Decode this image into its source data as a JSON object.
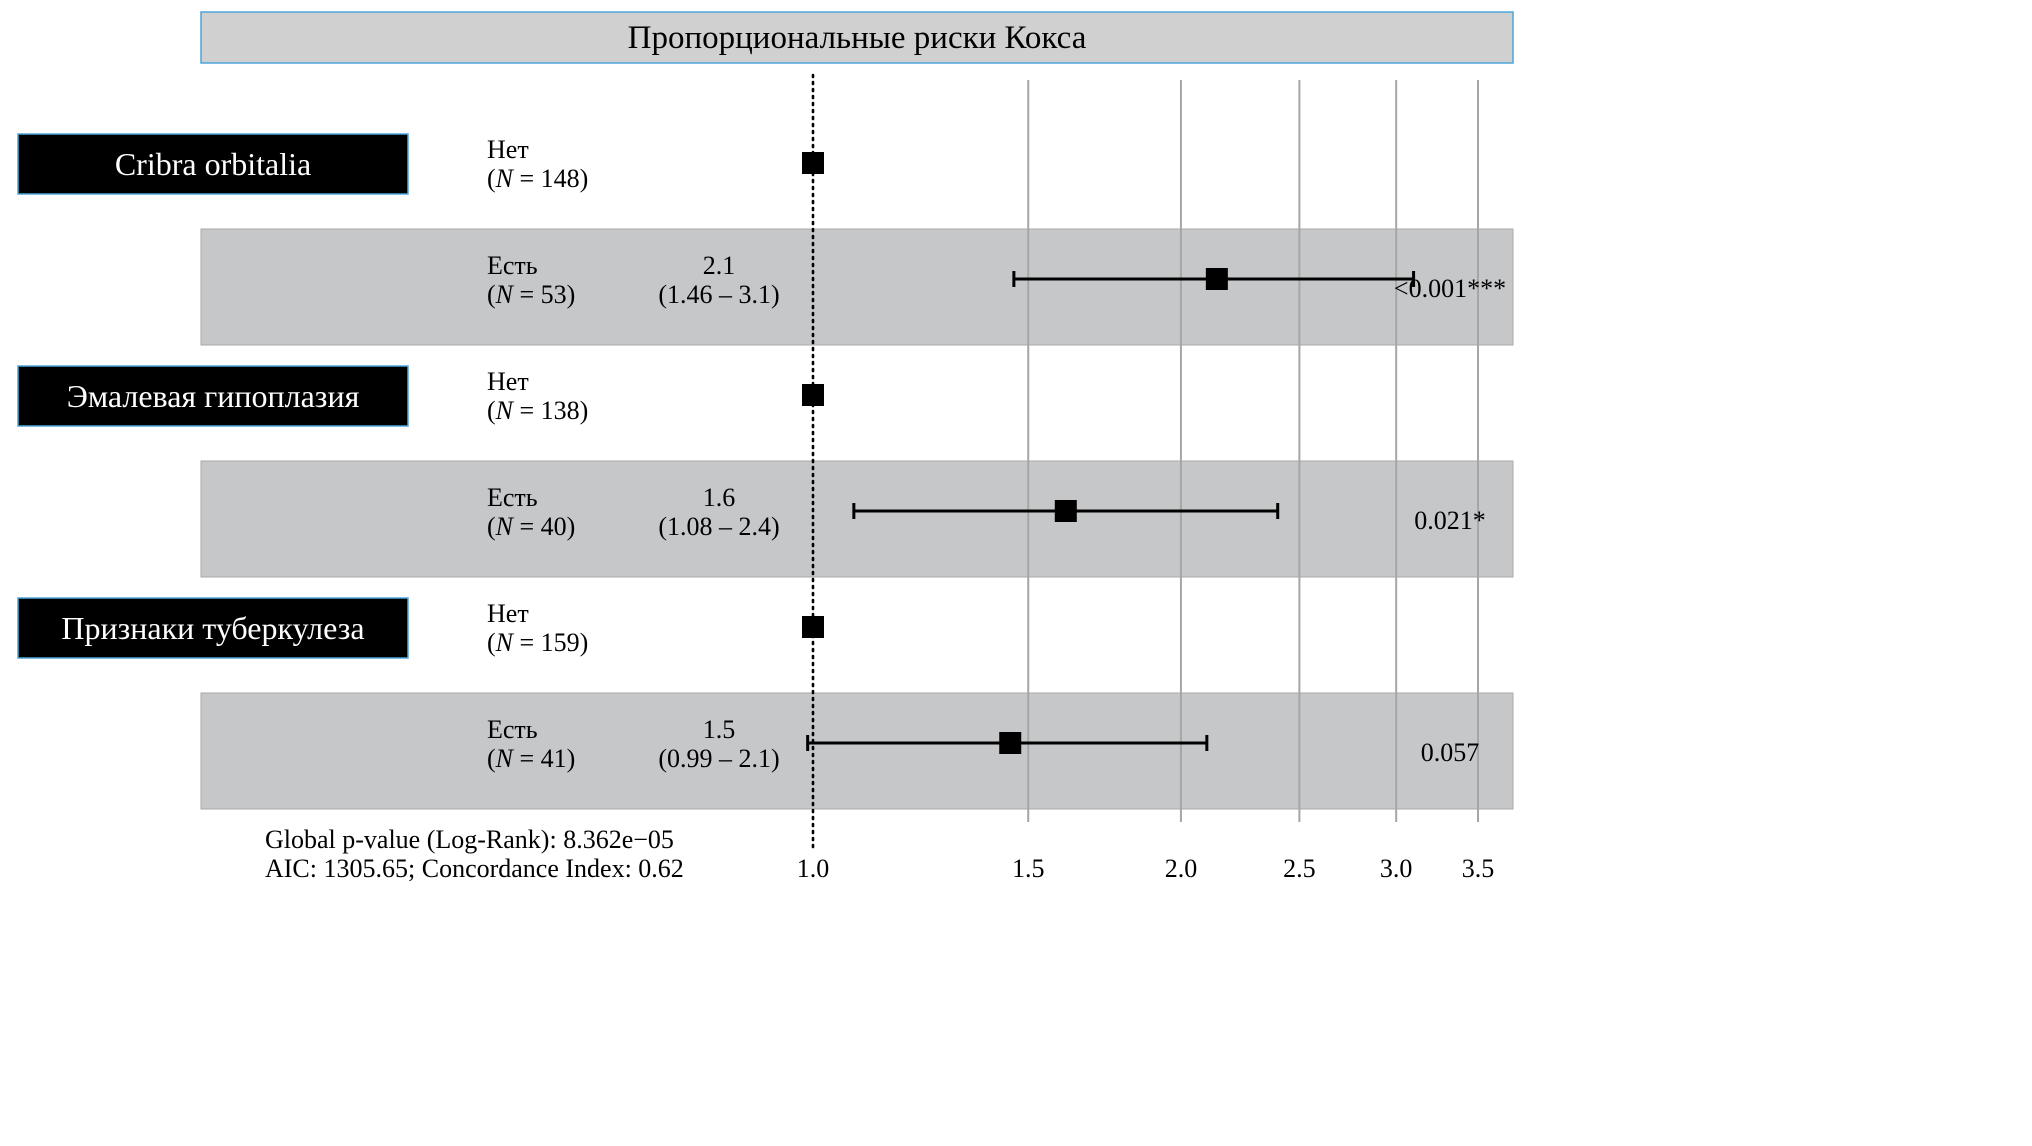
{
  "chart_data": {
    "type": "forest",
    "title": "Пропорциональные риски Кокса",
    "x_scale": "log",
    "xlim": [
      0.62,
      3.65
    ],
    "reference_value": 1.0,
    "x_ticks": [
      {
        "value": 1.0,
        "label": "1.0"
      },
      {
        "value": 1.5,
        "label": "1.5"
      },
      {
        "value": 2.0,
        "label": "2.0"
      },
      {
        "value": 2.5,
        "label": "2.5"
      },
      {
        "value": 3.0,
        "label": "3.0"
      },
      {
        "value": 3.5,
        "label": "3.5"
      }
    ],
    "variables": [
      {
        "name": "Cribra orbitalia",
        "levels": [
          {
            "label": "Нет",
            "n_prefix": "(",
            "n_symbol": "N",
            "n_text": " = 148)",
            "reference": true,
            "estimate": 1.0
          },
          {
            "label": "Есть",
            "n_prefix": "(",
            "n_symbol": "N",
            "n_text": " = 53)",
            "reference": false,
            "estimate": 2.14,
            "ci_low": 1.46,
            "ci_high": 3.1,
            "estimate_text": "2.1",
            "ci_text": "(1.46 – 3.1)",
            "p_text": "<0.001***"
          }
        ]
      },
      {
        "name": "Эмалевая гипоплазия",
        "levels": [
          {
            "label": "Нет",
            "n_prefix": "(",
            "n_symbol": "N",
            "n_text": " = 138)",
            "reference": true,
            "estimate": 1.0
          },
          {
            "label": "Есть",
            "n_prefix": "(",
            "n_symbol": "N",
            "n_text": " = 40)",
            "reference": false,
            "estimate": 1.61,
            "ci_low": 1.08,
            "ci_high": 2.4,
            "estimate_text": "1.6",
            "ci_text": "(1.08 – 2.4)",
            "p_text": "0.021*"
          }
        ]
      },
      {
        "name": "Признаки туберкулеза",
        "levels": [
          {
            "label": "Нет",
            "n_prefix": "(",
            "n_symbol": "N",
            "n_text": " = 159)",
            "reference": true,
            "estimate": 1.0
          },
          {
            "label": "Есть",
            "n_prefix": "(",
            "n_symbol": "N",
            "n_text": " = 41)",
            "reference": false,
            "estimate": 1.45,
            "ci_low": 0.99,
            "ci_high": 2.1,
            "estimate_text": "1.5",
            "ci_text": "(0.99 – 2.1)",
            "p_text": "0.057"
          }
        ]
      }
    ],
    "footer": [
      "Global p-value (Log-Rank): 8.362e−05",
      "AIC: 1305.65; Concordance Index: 0.62"
    ],
    "colors": {
      "title_fill": "#d0d0d0",
      "title_border": "#4da6d9",
      "label_box_fill": "#000000",
      "label_box_border": "#4da6d9",
      "label_text": "#ffffff",
      "band_fill": "#c6c7c9",
      "band_border": "#a9a9a9",
      "grid": "#a6a6a6",
      "marker": "#000000"
    }
  }
}
